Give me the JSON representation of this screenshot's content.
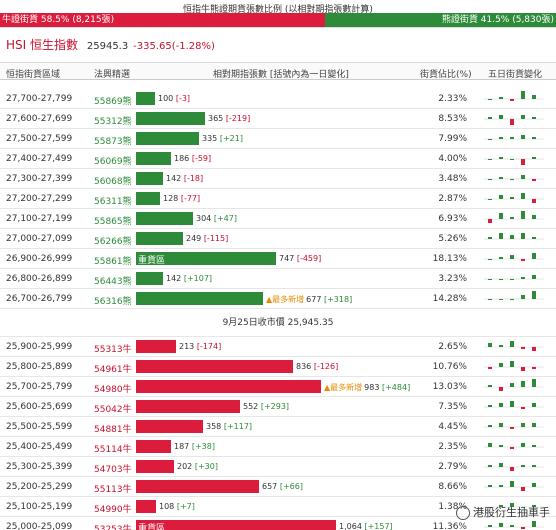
{
  "topbar": {
    "title": "恒指牛熊證期貨張數比例 (以相對期指張數計算)",
    "bull_label": "牛證街貨 58.5% (8,215張)",
    "bear_label": "熊證街貨 41.5% (5,830張)",
    "bull_pct": 58.5,
    "bear_pct": 41.5,
    "bull_color": "#dc1c3c",
    "bear_color": "#2e8b3a"
  },
  "header": {
    "index_name": "HSI 恒生指數",
    "price": "25945.3",
    "change": "-335.65(-1.28%)"
  },
  "columns": {
    "range": "恒指街貨區域",
    "code": "法興精選",
    "bar": "相對期指張數 [括號內為一日變化]",
    "pct": "街貨佔比(%)",
    "spark": "五日街貨變化"
  },
  "mid_label": "9月25日收市價 25,945.35",
  "bear_rows": [
    {
      "range": "27,700-27,799",
      "code": "55869熊",
      "value": 100,
      "text": "100",
      "delta": "[-3]",
      "pct": "2.33%",
      "spark": [
        0,
        1,
        -1,
        4,
        2
      ]
    },
    {
      "range": "27,600-27,699",
      "code": "55312熊",
      "value": 365,
      "text": "365",
      "delta": "[-219]",
      "pct": "8.53%",
      "spark": [
        1,
        2,
        -3,
        2,
        1
      ]
    },
    {
      "range": "27,500-27,599",
      "code": "55873熊",
      "value": 335,
      "text": "335",
      "delta": "[+21]",
      "pct": "7.99%",
      "spark": [
        0,
        1,
        1,
        2,
        1
      ]
    },
    {
      "range": "27,400-27,499",
      "code": "56069熊",
      "value": 186,
      "text": "186",
      "delta": "[-59]",
      "pct": "4.00%",
      "spark": [
        0,
        1,
        0,
        -3,
        1
      ]
    },
    {
      "range": "27,300-27,399",
      "code": "56068熊",
      "value": 142,
      "text": "142",
      "delta": "[-18]",
      "pct": "3.48%",
      "spark": [
        0,
        1,
        0,
        2,
        -1
      ]
    },
    {
      "range": "27,200-27,299",
      "code": "56311熊",
      "value": 128,
      "text": "128",
      "delta": "[-77]",
      "pct": "2.87%",
      "spark": [
        0,
        2,
        1,
        3,
        -2
      ]
    },
    {
      "range": "27,100-27,199",
      "code": "55865熊",
      "value": 304,
      "text": "304",
      "delta": "[+47]",
      "pct": "6.93%",
      "spark": [
        -2,
        3,
        1,
        4,
        2
      ]
    },
    {
      "range": "27,000-27,099",
      "code": "56266熊",
      "value": 249,
      "text": "249",
      "delta": "[-115]",
      "pct": "5.26%",
      "spark": [
        1,
        3,
        2,
        3,
        1
      ]
    },
    {
      "range": "26,900-26,999",
      "code": "55861熊",
      "value": 747,
      "text": "747",
      "delta": "[-459]",
      "pct": "18.13%",
      "zone": "重貨區",
      "spark": [
        0,
        1,
        2,
        -1,
        3
      ]
    },
    {
      "range": "26,800-26,899",
      "code": "56443熊",
      "value": 142,
      "text": "142",
      "delta": "[+107]",
      "pct": "3.23%",
      "spark": [
        0,
        0,
        0,
        1,
        2
      ]
    },
    {
      "range": "26,700-26,799",
      "code": "56316熊",
      "value": 677,
      "text": "677",
      "delta": "[+318]",
      "pct": "14.28%",
      "newmark": "▲最多新增",
      "spark": [
        0,
        0,
        0,
        2,
        4
      ]
    }
  ],
  "bull_rows": [
    {
      "range": "25,900-25,999",
      "code": "55313牛",
      "value": 213,
      "text": "213",
      "delta": "[-174]",
      "pct": "2.65%",
      "spark": [
        2,
        1,
        3,
        -1,
        -2
      ]
    },
    {
      "range": "25,800-25,899",
      "code": "54961牛",
      "value": 836,
      "text": "836",
      "delta": "[-126]",
      "pct": "10.76%",
      "spark": [
        -1,
        2,
        3,
        -2,
        -1
      ]
    },
    {
      "range": "25,700-25,799",
      "code": "54980牛",
      "value": 983,
      "text": "983",
      "delta": "[+484]",
      "pct": "13.03%",
      "newmark": "▲最多新增",
      "spark": [
        1,
        -2,
        2,
        3,
        4
      ]
    },
    {
      "range": "25,600-25,699",
      "code": "55042牛",
      "value": 552,
      "text": "552",
      "delta": "[+293]",
      "pct": "7.35%",
      "spark": [
        1,
        2,
        3,
        -1,
        2
      ]
    },
    {
      "range": "25,500-25,599",
      "code": "54881牛",
      "value": 358,
      "text": "358",
      "delta": "[+117]",
      "pct": "4.45%",
      "spark": [
        1,
        2,
        -1,
        2,
        2
      ]
    },
    {
      "range": "25,400-25,499",
      "code": "55114牛",
      "value": 187,
      "text": "187",
      "delta": "[+38]",
      "pct": "2.35%",
      "spark": [
        2,
        1,
        -1,
        2,
        1
      ]
    },
    {
      "range": "25,300-25,399",
      "code": "54703牛",
      "value": 202,
      "text": "202",
      "delta": "[+30]",
      "pct": "2.79%",
      "spark": [
        1,
        2,
        -2,
        1,
        1
      ]
    },
    {
      "range": "25,200-25,299",
      "code": "55113牛",
      "value": 657,
      "text": "657",
      "delta": "[+66]",
      "pct": "8.66%",
      "spark": [
        1,
        1,
        3,
        -2,
        2
      ]
    },
    {
      "range": "25,100-25,199",
      "code": "54990牛",
      "value": 108,
      "text": "108",
      "delta": "[+7]",
      "pct": "1.38%",
      "spark": [
        0,
        1,
        2,
        0,
        1
      ]
    },
    {
      "range": "25,000-25,099",
      "code": "53253牛",
      "value": 1064,
      "text": "1,064",
      "delta": "[+157]",
      "pct": "11.36%",
      "zone": "重貨區",
      "spark": [
        1,
        2,
        1,
        -1,
        3
      ]
    }
  ],
  "watermark": "港股衍生抽車手"
}
